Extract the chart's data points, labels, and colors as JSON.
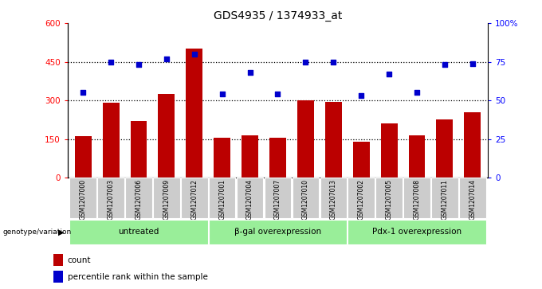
{
  "title": "GDS4935 / 1374933_at",
  "samples": [
    "GSM1207000",
    "GSM1207003",
    "GSM1207006",
    "GSM1207009",
    "GSM1207012",
    "GSM1207001",
    "GSM1207004",
    "GSM1207007",
    "GSM1207010",
    "GSM1207013",
    "GSM1207002",
    "GSM1207005",
    "GSM1207008",
    "GSM1207011",
    "GSM1207014"
  ],
  "counts": [
    160,
    290,
    220,
    325,
    500,
    155,
    165,
    155,
    300,
    295,
    140,
    210,
    165,
    225,
    255
  ],
  "percentiles": [
    55,
    75,
    73,
    77,
    80,
    54,
    68,
    54,
    75,
    75,
    53,
    67,
    55,
    73,
    74
  ],
  "groups": [
    {
      "label": "untreated",
      "start": 0,
      "end": 5
    },
    {
      "label": "β-gal overexpression",
      "start": 5,
      "end": 10
    },
    {
      "label": "Pdx-1 overexpression",
      "start": 10,
      "end": 15
    }
  ],
  "bar_color": "#bb0000",
  "dot_color": "#0000cc",
  "group_bg_color": "#99ee99",
  "sample_bg_color": "#cccccc",
  "ylim_left": [
    0,
    600
  ],
  "ylim_right": [
    0,
    100
  ],
  "yticks_left": [
    0,
    150,
    300,
    450,
    600
  ],
  "yticks_right": [
    0,
    25,
    50,
    75,
    100
  ],
  "ytick_labels_right": [
    "0",
    "25",
    "50",
    "75",
    "100%"
  ],
  "hlines": [
    150,
    300,
    450
  ],
  "title_fontsize": 10,
  "legend_label_count": "count",
  "legend_label_percentile": "percentile rank within the sample",
  "genotype_label": "genotype/variation"
}
